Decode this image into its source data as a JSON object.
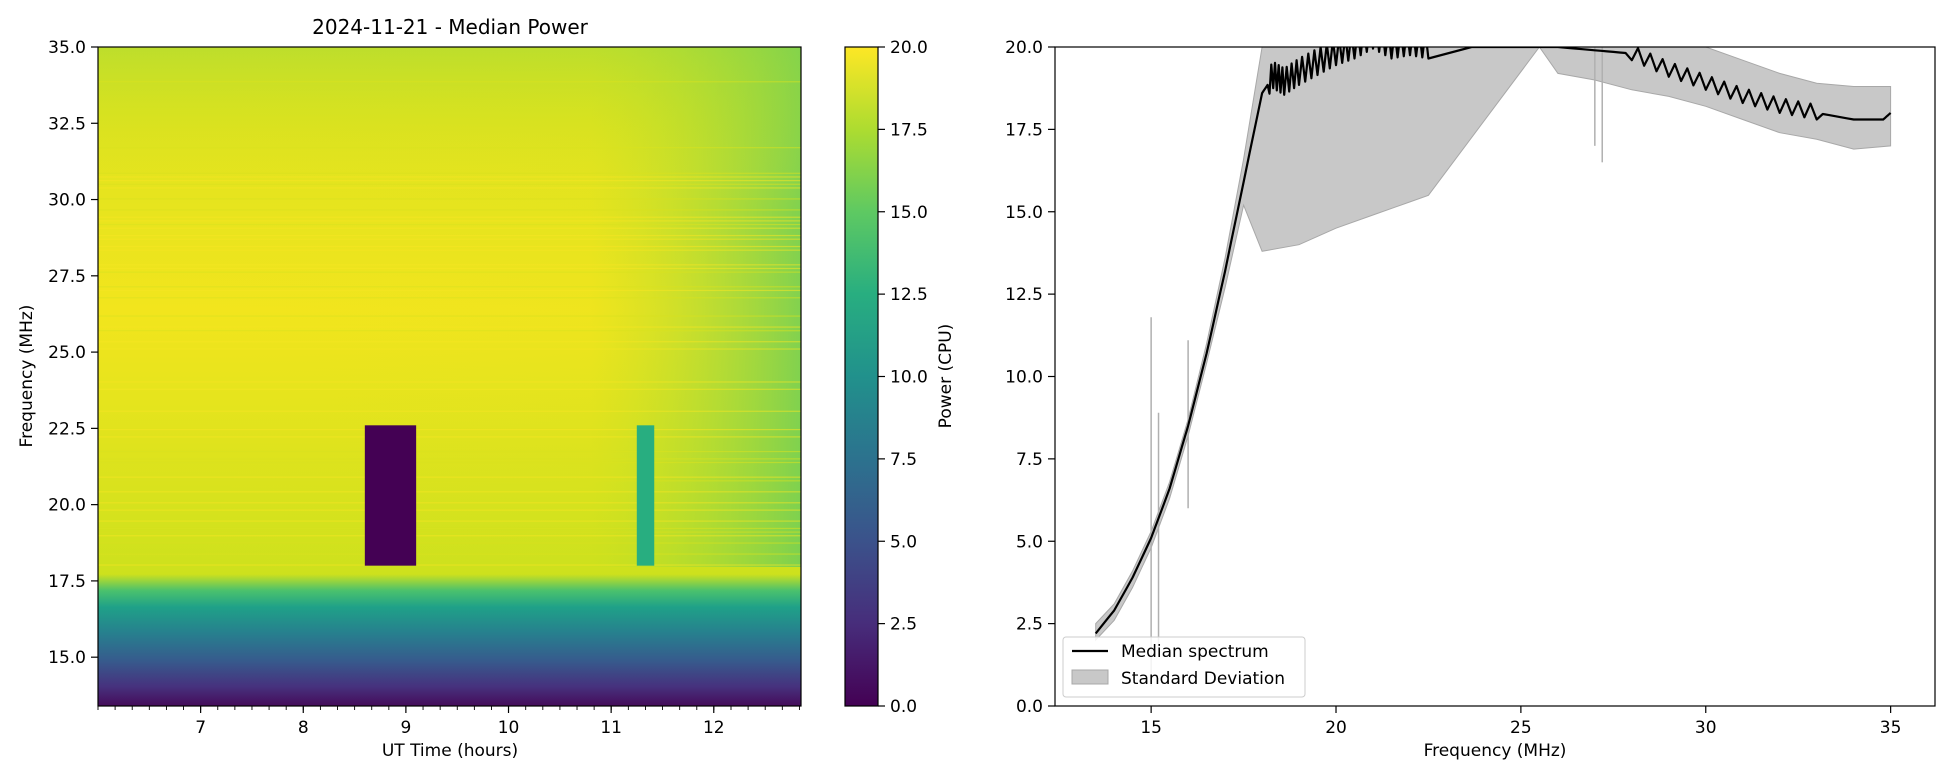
{
  "chart_data": [
    {
      "type": "heatmap",
      "title": "2024-11-21 - Median Power",
      "xlabel": "UT Time (hours)",
      "ylabel": "Frequency (MHz)",
      "xlim": [
        6.0,
        12.85
      ],
      "ylim": [
        13.4,
        35.0
      ],
      "xticks": [
        "7",
        "8",
        "9",
        "10",
        "11",
        "12"
      ],
      "xtick_values": [
        7,
        8,
        9,
        10,
        11,
        12
      ],
      "yticks": [
        "15.0",
        "17.5",
        "20.0",
        "22.5",
        "25.0",
        "27.5",
        "30.0",
        "32.5",
        "35.0"
      ],
      "ytick_values": [
        15.0,
        17.5,
        20.0,
        22.5,
        25.0,
        27.5,
        30.0,
        32.5,
        35.0
      ],
      "colorbar": {
        "label": "Power (CPU)",
        "range": [
          0.0,
          20.0
        ],
        "colormap": "viridis",
        "ticks": [
          "0.0",
          "2.5",
          "5.0",
          "7.5",
          "10.0",
          "12.5",
          "15.0",
          "17.5",
          "20.0"
        ],
        "tick_values": [
          0.0,
          2.5,
          5.0,
          7.5,
          10.0,
          12.5,
          15.0,
          17.5,
          20.0
        ]
      },
      "features": [
        {
          "name": "dropout-block",
          "time_range": [
            8.6,
            9.1
          ],
          "freq_range": [
            18.0,
            22.6
          ],
          "power": 0.5
        },
        {
          "name": "reduced-block",
          "time_range": [
            11.25,
            11.42
          ],
          "freq_range": [
            18.0,
            22.6
          ],
          "power": 13.0
        }
      ]
    },
    {
      "type": "line",
      "xlabel": "Frequency (MHz)",
      "ylabel": "",
      "xlim": [
        12.4,
        36.2
      ],
      "ylim": [
        0.0,
        20.0
      ],
      "xticks": [
        "15",
        "20",
        "25",
        "30",
        "35"
      ],
      "xtick_values": [
        15,
        20,
        25,
        30,
        35
      ],
      "yticks": [
        "0.0",
        "2.5",
        "5.0",
        "7.5",
        "10.0",
        "12.5",
        "15.0",
        "17.5",
        "20.0"
      ],
      "ytick_values": [
        0.0,
        2.5,
        5.0,
        7.5,
        10.0,
        12.5,
        15.0,
        17.5,
        20.0
      ],
      "legend": {
        "location": "lower-left",
        "entries": [
          "Median spectrum",
          "Standard Deviation"
        ]
      },
      "series": [
        {
          "name": "Median spectrum",
          "color": "#000000",
          "x": [
            13.5,
            14.0,
            14.5,
            15.0,
            15.5,
            16.0,
            16.5,
            17.0,
            17.5,
            18.0,
            18.3,
            18.6,
            19.0,
            19.5,
            20.0,
            20.5,
            21.0,
            21.5,
            22.0,
            22.5,
            26.0,
            27.0,
            28.0,
            29.0,
            30.0,
            31.0,
            32.0,
            33.0,
            34.0,
            34.8,
            35.0
          ],
          "y": [
            2.2,
            2.9,
            3.9,
            5.1,
            6.6,
            8.5,
            10.7,
            13.2,
            15.9,
            18.6,
            19.1,
            18.9,
            19.2,
            19.5,
            19.8,
            20.0,
            20.3,
            20.0,
            20.1,
            20.0,
            20.0,
            19.9,
            19.8,
            19.3,
            18.9,
            18.5,
            18.2,
            18.0,
            17.8,
            17.8,
            18.0
          ]
        },
        {
          "name": "Standard Deviation",
          "color": "#c8c8c8",
          "x": [
            13.5,
            14.0,
            14.5,
            15.0,
            15.5,
            16.0,
            16.5,
            17.0,
            17.5,
            18.0,
            19.0,
            20.0,
            21.0,
            22.0,
            22.5,
            25.5,
            26.0,
            27.0,
            28.0,
            29.0,
            30.0,
            31.0,
            32.0,
            33.0,
            34.0,
            35.0
          ],
          "upper": [
            2.5,
            3.1,
            4.1,
            5.3,
            6.8,
            8.7,
            11.0,
            13.6,
            16.6,
            20.0,
            20.0,
            20.0,
            20.0,
            20.0,
            20.0,
            20.0,
            20.0,
            20.0,
            20.0,
            20.0,
            20.0,
            19.6,
            19.2,
            18.9,
            18.8,
            18.8
          ],
          "lower": [
            2.0,
            2.6,
            3.6,
            4.8,
            6.3,
            8.2,
            10.4,
            12.7,
            15.2,
            13.8,
            14.0,
            14.5,
            14.9,
            15.3,
            15.5,
            20.0,
            19.2,
            19.0,
            18.7,
            18.5,
            18.2,
            17.8,
            17.4,
            17.2,
            16.9,
            17.0
          ]
        }
      ]
    }
  ]
}
